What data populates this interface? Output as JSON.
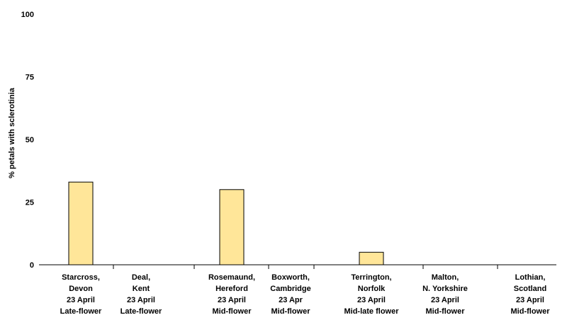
{
  "chart_data": {
    "type": "bar",
    "title": "",
    "xlabel": "",
    "ylabel": "% petals with sclerotinia",
    "ylim": [
      0,
      100
    ],
    "yticks": [
      0,
      25,
      50,
      75,
      100
    ],
    "grid": false,
    "legend": "none",
    "bar_color": "#FFE699",
    "bar_edge_color": "#000000",
    "categories": [
      [
        "Starcross,",
        "Devon",
        "23 April",
        "Late-flower"
      ],
      [
        "Deal,",
        "Kent",
        "23 April",
        "Late-flower"
      ],
      [
        "Rosemaund,",
        "Hereford",
        "23 April",
        "Mid-flower"
      ],
      [
        "Boxworth,",
        "Cambridge",
        "23 Apr",
        "Mid-flower"
      ],
      [
        "Terrington,",
        "Norfolk",
        "23 April",
        "Mid-late flower"
      ],
      [
        "Malton,",
        "N. Yorkshire",
        "23 April",
        "Mid-flower"
      ],
      [
        "Lothian,",
        "Scotland",
        "23 April",
        "Mid-flower"
      ]
    ],
    "values": [
      33,
      0,
      30,
      0,
      5,
      0,
      0
    ]
  }
}
